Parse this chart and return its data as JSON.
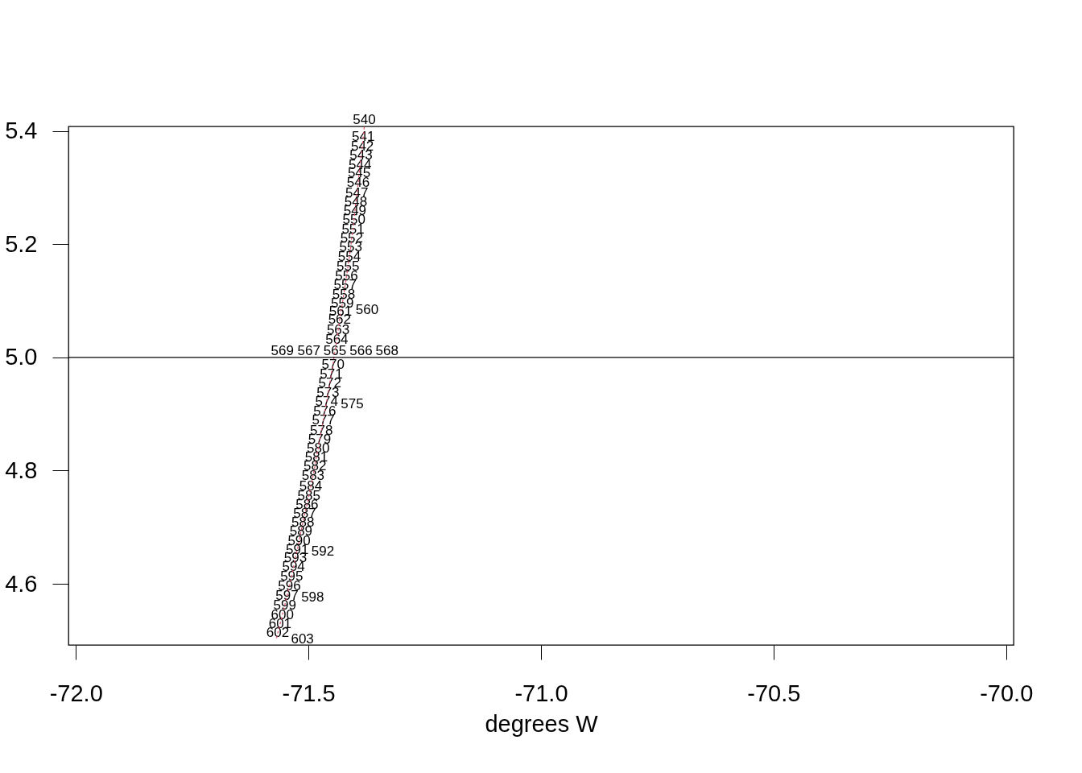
{
  "chart_data": {
    "type": "line",
    "xlabel": "degrees W",
    "color": "#df536b",
    "line_style": "dotted",
    "x": [
      -71.38,
      -71.382,
      -71.384,
      -71.387,
      -71.389,
      -71.391,
      -71.393,
      -71.396,
      -71.398,
      -71.4,
      -71.402,
      -71.404,
      -71.407,
      -71.409,
      -71.412,
      -71.415,
      -71.418,
      -71.421,
      -71.424,
      -71.427,
      -71.43,
      -71.431,
      -71.433,
      -71.436,
      -71.439,
      -71.443,
      -71.443,
      -71.443,
      -71.443,
      -71.444,
      -71.447,
      -71.451,
      -71.454,
      -71.458,
      -71.461,
      -71.462,
      -71.465,
      -71.468,
      -71.472,
      -71.476,
      -71.479,
      -71.483,
      -71.486,
      -71.49,
      -71.495,
      -71.499,
      -71.503,
      -71.508,
      -71.512,
      -71.516,
      -71.52,
      -71.524,
      -71.525,
      -71.528,
      -71.532,
      -71.536,
      -71.541,
      -71.546,
      -71.547,
      -71.551,
      -71.556,
      -71.561,
      -71.566,
      -71.569
    ],
    "values": [
      5.407,
      5.39,
      5.373,
      5.357,
      5.34,
      5.325,
      5.308,
      5.29,
      5.275,
      5.259,
      5.243,
      5.226,
      5.211,
      5.194,
      5.178,
      5.161,
      5.144,
      5.128,
      5.111,
      5.095,
      5.083,
      5.081,
      5.066,
      5.048,
      5.031,
      5.01,
      5.009,
      5.009,
      5.009,
      5.008,
      4.987,
      4.97,
      4.954,
      4.937,
      4.922,
      4.917,
      4.905,
      4.889,
      4.871,
      4.855,
      4.839,
      4.824,
      4.808,
      4.791,
      4.772,
      4.755,
      4.74,
      4.724,
      4.708,
      4.693,
      4.675,
      4.66,
      4.657,
      4.646,
      4.63,
      4.613,
      4.596,
      4.579,
      4.576,
      4.562,
      4.545,
      4.529,
      4.513,
      4.502
    ],
    "annotations": [
      {
        "text": "540",
        "x": -71.38,
        "y": 5.407
      },
      {
        "text": "541",
        "x": -71.382,
        "y": 5.39
      },
      {
        "text": "542",
        "x": -71.384,
        "y": 5.373
      },
      {
        "text": "543",
        "x": -71.387,
        "y": 5.357
      },
      {
        "text": "544",
        "x": -71.389,
        "y": 5.34
      },
      {
        "text": "545",
        "x": -71.391,
        "y": 5.325
      },
      {
        "text": "546",
        "x": -71.393,
        "y": 5.308
      },
      {
        "text": "547",
        "x": -71.396,
        "y": 5.29
      },
      {
        "text": "548",
        "x": -71.398,
        "y": 5.275
      },
      {
        "text": "549",
        "x": -71.4,
        "y": 5.259
      },
      {
        "text": "550",
        "x": -71.402,
        "y": 5.243
      },
      {
        "text": "551",
        "x": -71.404,
        "y": 5.226
      },
      {
        "text": "552",
        "x": -71.407,
        "y": 5.211
      },
      {
        "text": "553",
        "x": -71.409,
        "y": 5.194
      },
      {
        "text": "554",
        "x": -71.412,
        "y": 5.178
      },
      {
        "text": "555",
        "x": -71.415,
        "y": 5.161
      },
      {
        "text": "556",
        "x": -71.418,
        "y": 5.144
      },
      {
        "text": "557",
        "x": -71.421,
        "y": 5.128
      },
      {
        "text": "558",
        "x": -71.424,
        "y": 5.111
      },
      {
        "text": "559",
        "x": -71.427,
        "y": 5.095
      },
      {
        "text": "560",
        "x": -71.43,
        "y": 5.083
      },
      {
        "text": "561",
        "x": -71.431,
        "y": 5.081
      },
      {
        "text": "562",
        "x": -71.433,
        "y": 5.066
      },
      {
        "text": "563",
        "x": -71.436,
        "y": 5.048
      },
      {
        "text": "564",
        "x": -71.439,
        "y": 5.031
      },
      {
        "text": "565",
        "x": -71.443,
        "y": 5.01
      },
      {
        "text": "566",
        "x": -71.443,
        "y": 5.009
      },
      {
        "text": "567",
        "x": -71.443,
        "y": 5.009
      },
      {
        "text": "568",
        "x": -71.443,
        "y": 5.009
      },
      {
        "text": "569",
        "x": -71.444,
        "y": 5.008
      },
      {
        "text": "570",
        "x": -71.447,
        "y": 4.987
      },
      {
        "text": "571",
        "x": -71.451,
        "y": 4.97
      },
      {
        "text": "572",
        "x": -71.454,
        "y": 4.954
      },
      {
        "text": "573",
        "x": -71.458,
        "y": 4.937
      },
      {
        "text": "574",
        "x": -71.461,
        "y": 4.922
      },
      {
        "text": "575",
        "x": -71.462,
        "y": 4.917
      },
      {
        "text": "576",
        "x": -71.465,
        "y": 4.905
      },
      {
        "text": "577",
        "x": -71.468,
        "y": 4.889
      },
      {
        "text": "578",
        "x": -71.472,
        "y": 4.871
      },
      {
        "text": "579",
        "x": -71.476,
        "y": 4.855
      },
      {
        "text": "580",
        "x": -71.479,
        "y": 4.839
      },
      {
        "text": "581",
        "x": -71.483,
        "y": 4.824
      },
      {
        "text": "582",
        "x": -71.486,
        "y": 4.808
      },
      {
        "text": "583",
        "x": -71.49,
        "y": 4.791
      },
      {
        "text": "584",
        "x": -71.495,
        "y": 4.772
      },
      {
        "text": "585",
        "x": -71.499,
        "y": 4.755
      },
      {
        "text": "586",
        "x": -71.503,
        "y": 4.74
      },
      {
        "text": "587",
        "x": -71.508,
        "y": 4.724
      },
      {
        "text": "588",
        "x": -71.512,
        "y": 4.708
      },
      {
        "text": "589",
        "x": -71.516,
        "y": 4.693
      },
      {
        "text": "590",
        "x": -71.52,
        "y": 4.675
      },
      {
        "text": "591",
        "x": -71.524,
        "y": 4.66
      },
      {
        "text": "592",
        "x": -71.525,
        "y": 4.657
      },
      {
        "text": "593",
        "x": -71.528,
        "y": 4.646
      },
      {
        "text": "594",
        "x": -71.532,
        "y": 4.63
      },
      {
        "text": "595",
        "x": -71.536,
        "y": 4.613
      },
      {
        "text": "596",
        "x": -71.541,
        "y": 4.596
      },
      {
        "text": "597",
        "x": -71.546,
        "y": 4.579
      },
      {
        "text": "598",
        "x": -71.547,
        "y": 4.576
      },
      {
        "text": "599",
        "x": -71.551,
        "y": 4.562
      },
      {
        "text": "600",
        "x": -71.556,
        "y": 4.545
      },
      {
        "text": "601",
        "x": -71.561,
        "y": 4.529
      },
      {
        "text": "602",
        "x": -71.566,
        "y": 4.513
      },
      {
        "text": "603",
        "x": -71.569,
        "y": 4.502
      }
    ],
    "xlim": [
      -72.016,
      -69.984
    ],
    "ylim": [
      4.492,
      5.408
    ],
    "xticks": [
      {
        "value": -72,
        "label": "-72.0"
      },
      {
        "value": -71.5,
        "label": "-71.5"
      },
      {
        "value": -71,
        "label": "-71.0"
      },
      {
        "value": -70.5,
        "label": "-70.5"
      },
      {
        "value": -70,
        "label": "-70.0"
      }
    ],
    "yticks": [
      {
        "value": 4.6,
        "label": "4.6"
      },
      {
        "value": 4.8,
        "label": "4.8"
      },
      {
        "value": 5,
        "label": "5.0"
      },
      {
        "value": 5.2,
        "label": "5.2"
      },
      {
        "value": 5.4,
        "label": "5.4"
      }
    ],
    "ref_lines": [
      {
        "axis": "y",
        "value": 5,
        "color": "#000000"
      }
    ]
  }
}
